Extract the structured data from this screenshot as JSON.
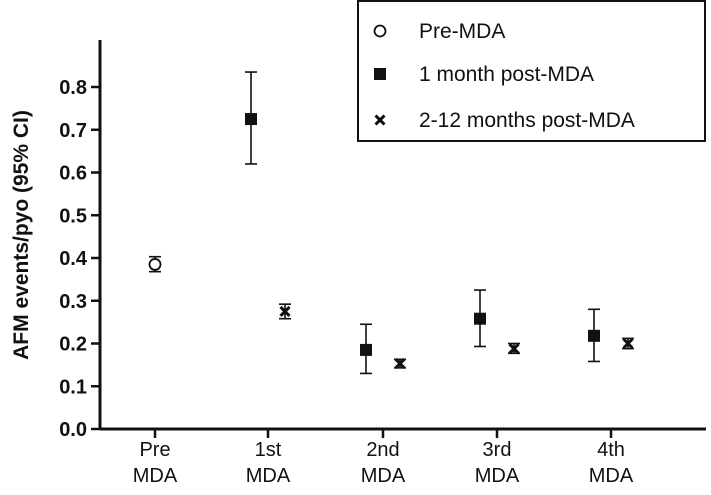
{
  "chart_data": {
    "type": "scatter",
    "ylabel": "AFM events/pyo (95% CI)",
    "xlabel": "",
    "ylim": [
      0,
      0.9
    ],
    "yticks": [
      0.0,
      0.1,
      0.2,
      0.3,
      0.4,
      0.5,
      0.6,
      0.7,
      0.8
    ],
    "ytick_labels": [
      "0.0",
      "0.1",
      "0.2",
      "0.3",
      "0.4",
      "0.5",
      "0.6",
      "0.7",
      "0.8"
    ],
    "categories": [
      {
        "line1": "Pre",
        "line2": "MDA"
      },
      {
        "line1": "1st",
        "line2": "MDA"
      },
      {
        "line1": "2nd",
        "line2": "MDA"
      },
      {
        "line1": "3rd",
        "line2": "MDA"
      },
      {
        "line1": "4th",
        "line2": "MDA"
      }
    ],
    "legend_position": "top-right",
    "grid": false,
    "series": [
      {
        "name": "Pre-MDA",
        "marker": "open-circle",
        "points": [
          {
            "category": 0,
            "value": 0.385,
            "ci_low": 0.368,
            "ci_high": 0.403
          }
        ]
      },
      {
        "name": "1 month post-MDA",
        "marker": "filled-square",
        "points": [
          {
            "category": 1,
            "value": 0.725,
            "ci_low": 0.62,
            "ci_high": 0.835
          },
          {
            "category": 2,
            "value": 0.185,
            "ci_low": 0.13,
            "ci_high": 0.245
          },
          {
            "category": 3,
            "value": 0.258,
            "ci_low": 0.193,
            "ci_high": 0.325
          },
          {
            "category": 4,
            "value": 0.218,
            "ci_low": 0.158,
            "ci_high": 0.28
          }
        ]
      },
      {
        "name": "2-12 months post-MDA",
        "marker": "x",
        "points": [
          {
            "category": 1,
            "value": 0.275,
            "ci_low": 0.258,
            "ci_high": 0.292
          },
          {
            "category": 2,
            "value": 0.153,
            "ci_low": 0.143,
            "ci_high": 0.163
          },
          {
            "category": 3,
            "value": 0.188,
            "ci_low": 0.177,
            "ci_high": 0.2
          },
          {
            "category": 4,
            "value": 0.2,
            "ci_low": 0.188,
            "ci_high": 0.212
          }
        ]
      }
    ]
  }
}
